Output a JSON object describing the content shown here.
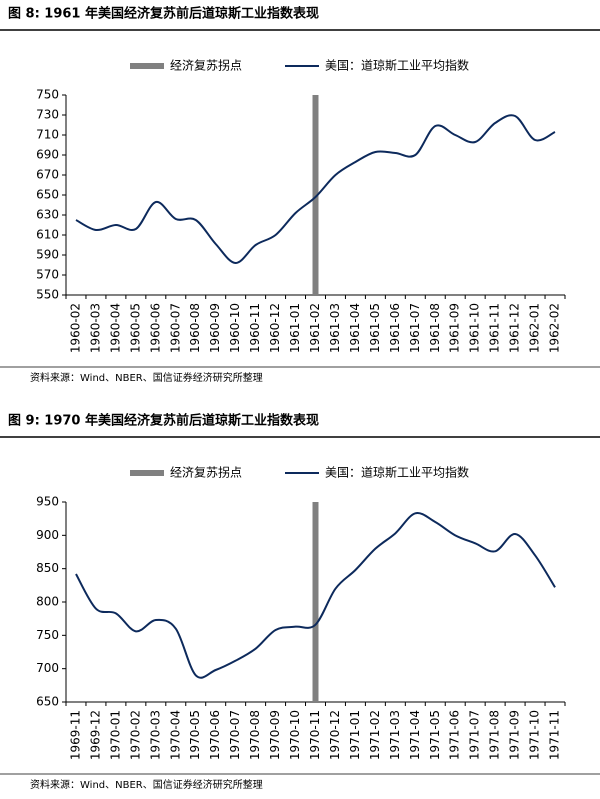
{
  "chart_data": [
    {
      "type": "line",
      "title": "图 8:  1961 年美国经济复苏前后道琼斯工业指数表现",
      "source": "资料来源：Wind、NBER、国信证券经济研究所整理",
      "categories": [
        "1960-02",
        "1960-03",
        "1960-04",
        "1960-05",
        "1960-06",
        "1960-07",
        "1960-08",
        "1960-09",
        "1960-10",
        "1960-11",
        "1960-12",
        "1961-01",
        "1961-02",
        "1961-03",
        "1961-04",
        "1961-05",
        "1961-06",
        "1961-07",
        "1961-08",
        "1961-09",
        "1961-10",
        "1961-11",
        "1961-12",
        "1962-01",
        "1962-02"
      ],
      "series": [
        {
          "name": "经济复苏拐点",
          "type": "bar",
          "color": "#808080",
          "values": [
            null,
            null,
            null,
            null,
            null,
            null,
            null,
            null,
            null,
            null,
            null,
            null,
            750,
            null,
            null,
            null,
            null,
            null,
            null,
            null,
            null,
            null,
            null,
            null,
            null
          ]
        },
        {
          "name": "美国：道琼斯工业平均指数",
          "type": "line",
          "color": "#0d2a5c",
          "values": [
            625,
            615,
            620,
            616,
            643,
            626,
            625,
            601,
            582,
            600,
            610,
            632,
            648,
            670,
            683,
            693,
            692,
            690,
            719,
            710,
            703,
            722,
            729,
            705,
            713
          ]
        }
      ],
      "ylim": [
        550,
        750
      ],
      "yticks": [
        550,
        570,
        590,
        610,
        630,
        650,
        670,
        690,
        710,
        730,
        750
      ]
    },
    {
      "type": "line",
      "title": "图 9:  1970 年美国经济复苏前后道琼斯工业指数表现",
      "source": "资料来源：Wind、NBER、国信证券经济研究所整理",
      "categories": [
        "1969-11",
        "1969-12",
        "1970-01",
        "1970-02",
        "1970-03",
        "1970-04",
        "1970-05",
        "1970-06",
        "1970-07",
        "1970-08",
        "1970-09",
        "1970-10",
        "1970-11",
        "1970-12",
        "1971-01",
        "1971-02",
        "1971-03",
        "1971-04",
        "1971-05",
        "1971-06",
        "1971-07",
        "1971-08",
        "1971-09",
        "1971-10",
        "1971-11"
      ],
      "series": [
        {
          "name": "经济复苏拐点",
          "type": "bar",
          "color": "#808080",
          "values": [
            null,
            null,
            null,
            null,
            null,
            null,
            null,
            null,
            null,
            null,
            null,
            null,
            950,
            null,
            null,
            null,
            null,
            null,
            null,
            null,
            null,
            null,
            null,
            null,
            null
          ]
        },
        {
          "name": "美国：道琼斯工业平均指数",
          "type": "line",
          "color": "#0d2a5c",
          "values": [
            842,
            790,
            783,
            756,
            773,
            760,
            690,
            698,
            712,
            730,
            758,
            763,
            766,
            820,
            848,
            880,
            903,
            933,
            920,
            900,
            888,
            876,
            902,
            870,
            822
          ]
        }
      ],
      "ylim": [
        650,
        950
      ],
      "yticks": [
        650,
        700,
        750,
        800,
        850,
        900,
        950
      ]
    }
  ]
}
